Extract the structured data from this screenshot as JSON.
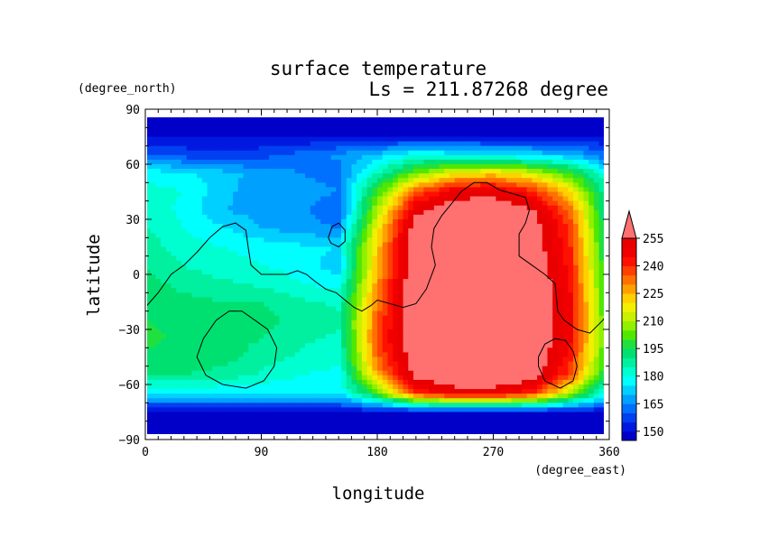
{
  "chart_data": {
    "type": "heatmap",
    "title": "surface temperature",
    "subtitle": "Ls = 211.87268 degree",
    "xlabel": "longitude",
    "ylabel": "latitude",
    "xunit": "(degree_east)",
    "yunit": "(degree_north)",
    "xlim": [
      0,
      360
    ],
    "ylim": [
      -90,
      90
    ],
    "x_ticks": [
      0,
      90,
      180,
      270,
      360
    ],
    "y_ticks": [
      -90,
      -60,
      -30,
      0,
      30,
      60,
      90
    ],
    "grid": false,
    "colorbar": {
      "ticks": [
        150,
        165,
        180,
        195,
        210,
        225,
        240,
        255
      ],
      "levels": [
        145,
        150,
        155,
        160,
        165,
        170,
        175,
        180,
        185,
        190,
        195,
        200,
        205,
        210,
        215,
        220,
        225,
        230,
        235,
        240,
        245,
        250,
        255,
        260
      ],
      "colors": [
        "#0000c8",
        "#0018e0",
        "#0040f0",
        "#0070ff",
        "#00a0ff",
        "#00d0ff",
        "#00ffff",
        "#00ffd0",
        "#00f0a0",
        "#00e070",
        "#20e040",
        "#50e800",
        "#90f000",
        "#c8f000",
        "#f0f000",
        "#ffd000",
        "#ffa000",
        "#ff7000",
        "#ff4000",
        "#ff1000",
        "#f00000",
        "#e80000",
        "#ff7070"
      ],
      "extend": "max"
    },
    "grid_lon": [
      0,
      30,
      60,
      90,
      120,
      150,
      180,
      210,
      240,
      270,
      300,
      330,
      360
    ],
    "grid_lat": [
      85,
      75,
      65,
      55,
      45,
      35,
      25,
      15,
      5,
      -5,
      -15,
      -25,
      -35,
      -45,
      -55,
      -65,
      -75,
      -85
    ],
    "values": [
      [
        148,
        148,
        148,
        148,
        148,
        148,
        148,
        148,
        148,
        148,
        148,
        148,
        148
      ],
      [
        150,
        150,
        150,
        150,
        150,
        150,
        150,
        150,
        150,
        150,
        150,
        150,
        150
      ],
      [
        160,
        158,
        156,
        158,
        162,
        166,
        172,
        180,
        178,
        176,
        174,
        170,
        160
      ],
      [
        178,
        176,
        172,
        168,
        165,
        162,
        185,
        205,
        218,
        222,
        214,
        200,
        178
      ],
      [
        182,
        180,
        172,
        166,
        168,
        165,
        200,
        235,
        250,
        252,
        242,
        220,
        182
      ],
      [
        185,
        178,
        170,
        168,
        166,
        160,
        210,
        252,
        262,
        262,
        256,
        232,
        185
      ],
      [
        185,
        180,
        176,
        170,
        168,
        165,
        218,
        262,
        265,
        265,
        262,
        238,
        185
      ],
      [
        188,
        182,
        180,
        178,
        176,
        175,
        222,
        265,
        265,
        265,
        262,
        240,
        188
      ],
      [
        190,
        185,
        182,
        180,
        178,
        172,
        225,
        265,
        265,
        265,
        264,
        242,
        190
      ],
      [
        192,
        188,
        186,
        184,
        180,
        178,
        228,
        265,
        265,
        265,
        265,
        244,
        192
      ],
      [
        194,
        192,
        190,
        190,
        186,
        184,
        232,
        265,
        265,
        265,
        265,
        246,
        194
      ],
      [
        195,
        194,
        192,
        192,
        188,
        186,
        234,
        265,
        265,
        265,
        265,
        246,
        195
      ],
      [
        196,
        194,
        192,
        190,
        186,
        184,
        236,
        265,
        265,
        265,
        265,
        246,
        196
      ],
      [
        194,
        194,
        192,
        188,
        184,
        182,
        234,
        262,
        265,
        265,
        265,
        242,
        194
      ],
      [
        190,
        190,
        188,
        184,
        180,
        178,
        226,
        258,
        264,
        265,
        262,
        236,
        190
      ],
      [
        175,
        175,
        175,
        175,
        175,
        175,
        200,
        240,
        250,
        250,
        240,
        210,
        175
      ],
      [
        150,
        150,
        150,
        150,
        150,
        150,
        150,
        150,
        150,
        150,
        150,
        150,
        150
      ],
      [
        148,
        148,
        148,
        148,
        148,
        148,
        148,
        148,
        148,
        148,
        148,
        148,
        148
      ]
    ],
    "coastlines": [
      [
        [
          0,
          -18
        ],
        [
          10,
          -10
        ],
        [
          20,
          0
        ],
        [
          30,
          5
        ],
        [
          40,
          12
        ],
        [
          50,
          20
        ],
        [
          60,
          26
        ],
        [
          70,
          28
        ],
        [
          78,
          24
        ],
        [
          80,
          14
        ],
        [
          82,
          5
        ],
        [
          90,
          0
        ],
        [
          100,
          0
        ],
        [
          110,
          0
        ],
        [
          118,
          2
        ],
        [
          125,
          0
        ],
        [
          132,
          -4
        ],
        [
          140,
          -8
        ],
        [
          148,
          -10
        ],
        [
          155,
          -14
        ],
        [
          162,
          -18
        ],
        [
          168,
          -20
        ],
        [
          175,
          -17
        ],
        [
          180,
          -14
        ],
        [
          190,
          -16
        ],
        [
          200,
          -18
        ],
        [
          210,
          -16
        ],
        [
          218,
          -8
        ],
        [
          225,
          5
        ],
        [
          222,
          15
        ],
        [
          224,
          25
        ],
        [
          230,
          32
        ],
        [
          237,
          38
        ],
        [
          245,
          45
        ],
        [
          255,
          50
        ],
        [
          265,
          50
        ],
        [
          275,
          46
        ],
        [
          285,
          44
        ],
        [
          295,
          42
        ],
        [
          298,
          35
        ],
        [
          295,
          28
        ],
        [
          290,
          22
        ],
        [
          290,
          10
        ],
        [
          300,
          5
        ],
        [
          310,
          0
        ],
        [
          318,
          -5
        ],
        [
          320,
          -20
        ],
        [
          325,
          -25
        ],
        [
          335,
          -30
        ],
        [
          345,
          -32
        ],
        [
          355,
          -25
        ],
        [
          360,
          -20
        ]
      ],
      [
        [
          40,
          -45
        ],
        [
          45,
          -35
        ],
        [
          55,
          -25
        ],
        [
          65,
          -20
        ],
        [
          75,
          -20
        ],
        [
          85,
          -25
        ],
        [
          95,
          -30
        ],
        [
          102,
          -40
        ],
        [
          100,
          -50
        ],
        [
          92,
          -58
        ],
        [
          78,
          -62
        ],
        [
          60,
          -60
        ],
        [
          47,
          -55
        ],
        [
          40,
          -45
        ]
      ],
      [
        [
          305,
          -45
        ],
        [
          310,
          -38
        ],
        [
          318,
          -35
        ],
        [
          326,
          -36
        ],
        [
          332,
          -42
        ],
        [
          335,
          -50
        ],
        [
          332,
          -58
        ],
        [
          322,
          -62
        ],
        [
          310,
          -58
        ],
        [
          305,
          -50
        ],
        [
          305,
          -45
        ]
      ],
      [
        [
          142,
          20
        ],
        [
          145,
          26
        ],
        [
          150,
          28
        ],
        [
          155,
          24
        ],
        [
          155,
          18
        ],
        [
          150,
          15
        ],
        [
          144,
          17
        ],
        [
          142,
          20
        ]
      ]
    ]
  }
}
